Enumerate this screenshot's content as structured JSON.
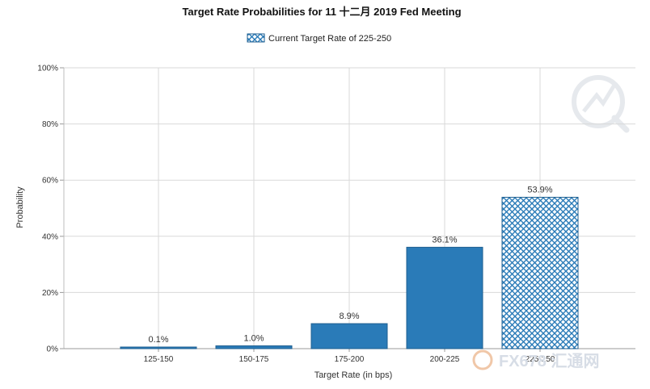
{
  "chart_data": {
    "type": "bar",
    "title": "Target Rate Probabilities for 11 十二月 2019 Fed Meeting",
    "xlabel": "Target Rate (in bps)",
    "ylabel": "Probability",
    "categories": [
      "125-150",
      "150-175",
      "175-200",
      "200-225",
      "225-250"
    ],
    "values": [
      0.1,
      1.0,
      8.9,
      36.1,
      53.9
    ],
    "data_labels": [
      "0.1%",
      "1.0%",
      "8.9%",
      "36.1%",
      "53.9%"
    ],
    "ylim": [
      0,
      100
    ],
    "yticks": [
      0,
      20,
      40,
      60,
      80,
      100
    ],
    "ytick_labels": [
      "0%",
      "20%",
      "40%",
      "60%",
      "80%",
      "100%"
    ],
    "grid": true,
    "legend": {
      "position": "top-center",
      "entries": [
        {
          "label": "Current Target Rate of 225-250",
          "pattern": "crosshatch"
        }
      ]
    },
    "highlight_category": "225-250",
    "colors": {
      "bar": "#2a7bb8",
      "bar_edge": "#1f5f90",
      "grid": "#d9d9d9"
    }
  },
  "watermark": {
    "text": "FX678 汇通网"
  }
}
